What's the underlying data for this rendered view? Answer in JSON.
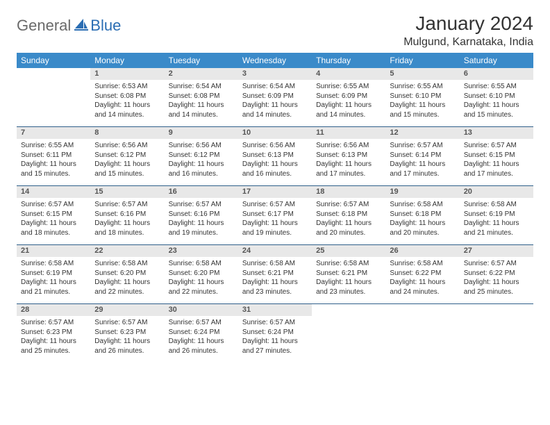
{
  "branding": {
    "logo_word1": "General",
    "logo_word2": "Blue",
    "word1_color": "#6a6a6a",
    "word2_color": "#2a6db3",
    "sail_color": "#2a6db3"
  },
  "title": {
    "month_year": "January 2024",
    "location": "Mulgund, Karnataka, India"
  },
  "style": {
    "header_bg": "#3a8ac9",
    "header_text": "#ffffff",
    "daynum_bg": "#e8e8e8",
    "daynum_text": "#555555",
    "rule_color": "#2f5f8a",
    "body_text": "#333333",
    "font_family": "Arial, Helvetica, sans-serif",
    "month_fontsize_pt": 21,
    "location_fontsize_pt": 12,
    "dayhead_fontsize_pt": 9,
    "cell_fontsize_pt": 7.5
  },
  "day_headers": [
    "Sunday",
    "Monday",
    "Tuesday",
    "Wednesday",
    "Thursday",
    "Friday",
    "Saturday"
  ],
  "weeks": [
    [
      {
        "n": "",
        "lines": []
      },
      {
        "n": "1",
        "lines": [
          "Sunrise: 6:53 AM",
          "Sunset: 6:08 PM",
          "Daylight: 11 hours",
          "and 14 minutes."
        ]
      },
      {
        "n": "2",
        "lines": [
          "Sunrise: 6:54 AM",
          "Sunset: 6:08 PM",
          "Daylight: 11 hours",
          "and 14 minutes."
        ]
      },
      {
        "n": "3",
        "lines": [
          "Sunrise: 6:54 AM",
          "Sunset: 6:09 PM",
          "Daylight: 11 hours",
          "and 14 minutes."
        ]
      },
      {
        "n": "4",
        "lines": [
          "Sunrise: 6:55 AM",
          "Sunset: 6:09 PM",
          "Daylight: 11 hours",
          "and 14 minutes."
        ]
      },
      {
        "n": "5",
        "lines": [
          "Sunrise: 6:55 AM",
          "Sunset: 6:10 PM",
          "Daylight: 11 hours",
          "and 15 minutes."
        ]
      },
      {
        "n": "6",
        "lines": [
          "Sunrise: 6:55 AM",
          "Sunset: 6:10 PM",
          "Daylight: 11 hours",
          "and 15 minutes."
        ]
      }
    ],
    [
      {
        "n": "7",
        "lines": [
          "Sunrise: 6:55 AM",
          "Sunset: 6:11 PM",
          "Daylight: 11 hours",
          "and 15 minutes."
        ]
      },
      {
        "n": "8",
        "lines": [
          "Sunrise: 6:56 AM",
          "Sunset: 6:12 PM",
          "Daylight: 11 hours",
          "and 15 minutes."
        ]
      },
      {
        "n": "9",
        "lines": [
          "Sunrise: 6:56 AM",
          "Sunset: 6:12 PM",
          "Daylight: 11 hours",
          "and 16 minutes."
        ]
      },
      {
        "n": "10",
        "lines": [
          "Sunrise: 6:56 AM",
          "Sunset: 6:13 PM",
          "Daylight: 11 hours",
          "and 16 minutes."
        ]
      },
      {
        "n": "11",
        "lines": [
          "Sunrise: 6:56 AM",
          "Sunset: 6:13 PM",
          "Daylight: 11 hours",
          "and 17 minutes."
        ]
      },
      {
        "n": "12",
        "lines": [
          "Sunrise: 6:57 AM",
          "Sunset: 6:14 PM",
          "Daylight: 11 hours",
          "and 17 minutes."
        ]
      },
      {
        "n": "13",
        "lines": [
          "Sunrise: 6:57 AM",
          "Sunset: 6:15 PM",
          "Daylight: 11 hours",
          "and 17 minutes."
        ]
      }
    ],
    [
      {
        "n": "14",
        "lines": [
          "Sunrise: 6:57 AM",
          "Sunset: 6:15 PM",
          "Daylight: 11 hours",
          "and 18 minutes."
        ]
      },
      {
        "n": "15",
        "lines": [
          "Sunrise: 6:57 AM",
          "Sunset: 6:16 PM",
          "Daylight: 11 hours",
          "and 18 minutes."
        ]
      },
      {
        "n": "16",
        "lines": [
          "Sunrise: 6:57 AM",
          "Sunset: 6:16 PM",
          "Daylight: 11 hours",
          "and 19 minutes."
        ]
      },
      {
        "n": "17",
        "lines": [
          "Sunrise: 6:57 AM",
          "Sunset: 6:17 PM",
          "Daylight: 11 hours",
          "and 19 minutes."
        ]
      },
      {
        "n": "18",
        "lines": [
          "Sunrise: 6:57 AM",
          "Sunset: 6:18 PM",
          "Daylight: 11 hours",
          "and 20 minutes."
        ]
      },
      {
        "n": "19",
        "lines": [
          "Sunrise: 6:58 AM",
          "Sunset: 6:18 PM",
          "Daylight: 11 hours",
          "and 20 minutes."
        ]
      },
      {
        "n": "20",
        "lines": [
          "Sunrise: 6:58 AM",
          "Sunset: 6:19 PM",
          "Daylight: 11 hours",
          "and 21 minutes."
        ]
      }
    ],
    [
      {
        "n": "21",
        "lines": [
          "Sunrise: 6:58 AM",
          "Sunset: 6:19 PM",
          "Daylight: 11 hours",
          "and 21 minutes."
        ]
      },
      {
        "n": "22",
        "lines": [
          "Sunrise: 6:58 AM",
          "Sunset: 6:20 PM",
          "Daylight: 11 hours",
          "and 22 minutes."
        ]
      },
      {
        "n": "23",
        "lines": [
          "Sunrise: 6:58 AM",
          "Sunset: 6:20 PM",
          "Daylight: 11 hours",
          "and 22 minutes."
        ]
      },
      {
        "n": "24",
        "lines": [
          "Sunrise: 6:58 AM",
          "Sunset: 6:21 PM",
          "Daylight: 11 hours",
          "and 23 minutes."
        ]
      },
      {
        "n": "25",
        "lines": [
          "Sunrise: 6:58 AM",
          "Sunset: 6:21 PM",
          "Daylight: 11 hours",
          "and 23 minutes."
        ]
      },
      {
        "n": "26",
        "lines": [
          "Sunrise: 6:58 AM",
          "Sunset: 6:22 PM",
          "Daylight: 11 hours",
          "and 24 minutes."
        ]
      },
      {
        "n": "27",
        "lines": [
          "Sunrise: 6:57 AM",
          "Sunset: 6:22 PM",
          "Daylight: 11 hours",
          "and 25 minutes."
        ]
      }
    ],
    [
      {
        "n": "28",
        "lines": [
          "Sunrise: 6:57 AM",
          "Sunset: 6:23 PM",
          "Daylight: 11 hours",
          "and 25 minutes."
        ]
      },
      {
        "n": "29",
        "lines": [
          "Sunrise: 6:57 AM",
          "Sunset: 6:23 PM",
          "Daylight: 11 hours",
          "and 26 minutes."
        ]
      },
      {
        "n": "30",
        "lines": [
          "Sunrise: 6:57 AM",
          "Sunset: 6:24 PM",
          "Daylight: 11 hours",
          "and 26 minutes."
        ]
      },
      {
        "n": "31",
        "lines": [
          "Sunrise: 6:57 AM",
          "Sunset: 6:24 PM",
          "Daylight: 11 hours",
          "and 27 minutes."
        ]
      },
      {
        "n": "",
        "lines": []
      },
      {
        "n": "",
        "lines": []
      },
      {
        "n": "",
        "lines": []
      }
    ]
  ]
}
